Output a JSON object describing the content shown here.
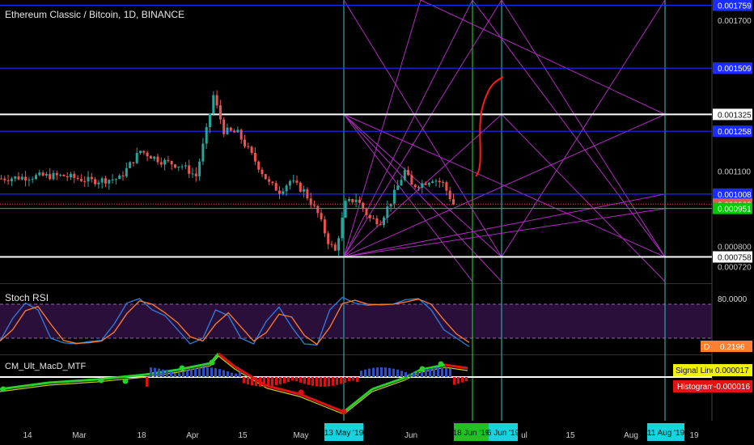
{
  "header": {
    "symbol_title": "Ethereum Classic / Bitcoin, 1D, BINANCE"
  },
  "colors": {
    "background": "#000000",
    "up_candle": "#26a69a",
    "down_candle": "#ef5350",
    "blue_level": "#1a2cff",
    "white_level": "#ffffff",
    "green_level": "#00c800",
    "magenta_fan": "#b02cc0",
    "cyan_vline": "#2fa8a8",
    "green_vline": "#22c022",
    "projection": "#ff1a1a",
    "rsi_k": "#2f7fe0",
    "rsi_d": "#ff7f30",
    "rsi_band": "#2a0f3a",
    "macd_up": "#2ad02a",
    "macd_down": "#e01010",
    "signal_line": "#c8c82a"
  },
  "price_axis": {
    "labels": [
      {
        "text": "0.001759",
        "price": 0.001759,
        "style": "blue-box"
      },
      {
        "text": "0.001700",
        "price": 0.0017,
        "style": "plain"
      },
      {
        "text": "0.001509",
        "price": 0.001509,
        "style": "blue-box"
      },
      {
        "text": "0.001325",
        "price": 0.001325,
        "style": "white-box"
      },
      {
        "text": "0.001258",
        "price": 0.001258,
        "style": "blue-box"
      },
      {
        "text": "0.001100",
        "price": 0.0011,
        "style": "plain"
      },
      {
        "text": "0.001008",
        "price": 0.001008,
        "style": "blue-box"
      },
      {
        "text": "0.000968",
        "price": 0.000968,
        "style": "red-box"
      },
      {
        "text": "0.000951",
        "price": 0.000951,
        "style": "green-box"
      },
      {
        "text": "0.000800",
        "price": 0.0008,
        "style": "plain"
      },
      {
        "text": "0.000758",
        "price": 0.000758,
        "style": "white-box"
      },
      {
        "text": "0.000720",
        "price": 0.00072,
        "style": "plain"
      }
    ]
  },
  "time_axis": {
    "labels": [
      "14",
      "Mar",
      "18",
      "Apr",
      "15",
      "May",
      "Jun",
      "ul",
      "15",
      "Aug",
      "19"
    ],
    "highlighted": [
      {
        "text": "13 May '19",
        "color": "#19d2e0"
      },
      {
        "text": "18 Jun '19",
        "color": "#22c022"
      },
      {
        "text": "6 Jun '19",
        "color": "#19d2e0"
      },
      {
        "text": "11 Aug '19",
        "color": "#19d2e0"
      }
    ]
  },
  "rsi_panel": {
    "title": "Stoch RSI",
    "level_label": "80.0000",
    "value_label": "0.2196",
    "value_prefix": "D"
  },
  "macd_panel": {
    "title": "CM_Ult_MacD_MTF",
    "signal_label": "Signal Line",
    "signal_value": "0.000017",
    "histogram_label": "Histogram",
    "histogram_value": "-0.000016"
  },
  "chart_data": {
    "type": "candlestick",
    "title": "Ethereum Classic / Bitcoin, 1D, BINANCE",
    "y_range": [
      0.00066,
      0.00178
    ],
    "levels": {
      "blue": [
        0.001759,
        0.001509,
        0.001258,
        0.001008
      ],
      "white": [
        0.001325,
        0.000758
      ],
      "green": [
        0.000951
      ],
      "current_price": 0.000968
    },
    "close_path": [
      {
        "day": 0,
        "price": 0.00107
      },
      {
        "day": 12,
        "price": 0.00108
      },
      {
        "day": 18,
        "price": 0.00108
      },
      {
        "day": 26,
        "price": 0.00106
      },
      {
        "day": 34,
        "price": 0.00107
      },
      {
        "day": 40,
        "price": 0.00118
      },
      {
        "day": 46,
        "price": 0.00114
      },
      {
        "day": 52,
        "price": 0.00112
      },
      {
        "day": 56,
        "price": 0.00108
      },
      {
        "day": 59,
        "price": 0.00126
      },
      {
        "day": 61,
        "price": 0.0014
      },
      {
        "day": 64,
        "price": 0.00126
      },
      {
        "day": 68,
        "price": 0.00125
      },
      {
        "day": 73,
        "price": 0.00114
      },
      {
        "day": 77,
        "price": 0.00105
      },
      {
        "day": 80,
        "price": 0.00102
      },
      {
        "day": 83,
        "price": 0.00106
      },
      {
        "day": 87,
        "price": 0.00102
      },
      {
        "day": 91,
        "price": 0.00093
      },
      {
        "day": 94,
        "price": 0.00082
      },
      {
        "day": 96,
        "price": 0.00078
      },
      {
        "day": 99,
        "price": 0.00097
      },
      {
        "day": 102,
        "price": 0.00099
      },
      {
        "day": 106,
        "price": 0.00091
      },
      {
        "day": 109,
        "price": 0.0009
      },
      {
        "day": 112,
        "price": 0.00098
      },
      {
        "day": 116,
        "price": 0.0011
      },
      {
        "day": 118,
        "price": 0.00104
      },
      {
        "day": 121,
        "price": 0.00105
      },
      {
        "day": 124,
        "price": 0.00107
      },
      {
        "day": 127,
        "price": 0.00105
      },
      {
        "day": 130,
        "price": 0.000968
      }
    ],
    "stoch_rsi": {
      "k": [
        0.15,
        0.55,
        0.82,
        0.7,
        0.2,
        0.12,
        0.1,
        0.14,
        0.16,
        0.45,
        0.82,
        0.9,
        0.7,
        0.6,
        0.35,
        0.1,
        0.2,
        0.7,
        0.6,
        0.2,
        0.1,
        0.5,
        0.75,
        0.4,
        0.1,
        0.08,
        0.7,
        0.92,
        0.82,
        0.78,
        0.8,
        0.8,
        0.88,
        0.9,
        0.7,
        0.35,
        0.2,
        0.05
      ],
      "upper": 80,
      "lower": 20
    }
  }
}
